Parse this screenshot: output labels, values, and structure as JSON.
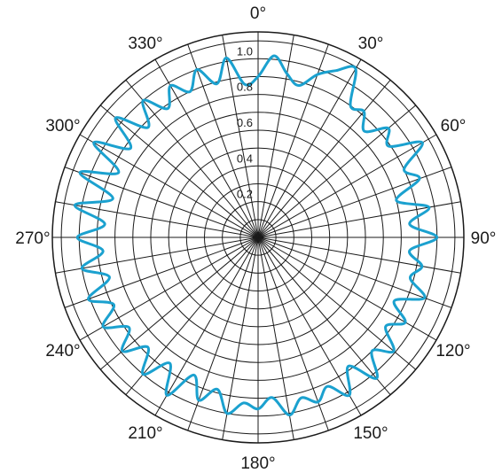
{
  "chart_data": {
    "type": "line",
    "subtype": "polar",
    "angle_direction": "clockwise",
    "zero_angle": "top",
    "angular_ticks": [
      0,
      30,
      60,
      90,
      120,
      150,
      180,
      210,
      240,
      270,
      300,
      330
    ],
    "angular_tick_labels": [
      "0°",
      "30°",
      "60°",
      "90°",
      "120°",
      "150°",
      "180°",
      "210°",
      "240°",
      "270°",
      "300°",
      "330°"
    ],
    "angular_grid_step_deg": 10,
    "radial_range": [
      0,
      1.15
    ],
    "radial_grid": [
      0.1,
      0.2,
      0.3,
      0.4,
      0.5,
      0.6,
      0.7,
      0.8,
      0.9,
      1.0,
      1.1
    ],
    "radial_tick_values": [
      0.2,
      0.4,
      0.6,
      0.8,
      1.0
    ],
    "radial_tick_labels": [
      "0.2",
      "0.4",
      "0.6",
      "0.8",
      "1.0"
    ],
    "grid": true,
    "series_color": "#1ba1cf",
    "series": [
      {
        "theta": [
          0,
          5,
          10,
          15,
          20,
          25,
          30,
          35,
          40,
          45,
          50,
          55,
          60,
          65,
          70,
          75,
          80,
          85,
          90,
          95,
          100,
          105,
          110,
          115,
          120,
          125,
          130,
          135,
          140,
          145,
          150,
          155,
          160,
          165,
          170,
          175,
          180,
          185,
          190,
          195,
          200,
          205,
          210,
          215,
          220,
          225,
          230,
          235,
          240,
          245,
          250,
          255,
          260,
          265,
          270,
          275,
          280,
          285,
          290,
          295,
          300,
          305,
          310,
          315,
          320,
          325,
          330,
          335,
          340,
          345,
          350,
          355
        ],
        "r": [
          0.9,
          1.02,
          0.93,
          0.88,
          0.97,
          1.03,
          1.09,
          0.9,
          0.92,
          0.84,
          0.95,
          0.89,
          1.06,
          0.9,
          0.96,
          0.8,
          0.97,
          0.85,
          1.0,
          0.85,
          0.93,
          0.88,
          0.99,
          0.84,
          0.95,
          0.87,
          0.99,
          0.9,
          1.03,
          0.88,
          1.02,
          0.92,
          0.98,
          0.93,
          1.01,
          0.9,
          0.96,
          0.93,
          1.0,
          0.88,
          0.97,
          0.85,
          1.02,
          0.86,
          1.0,
          0.87,
          0.99,
          0.88,
          1.0,
          0.89,
          1.01,
          0.86,
          1.0,
          0.87,
          1.01,
          0.86,
          1.04,
          0.84,
          1.06,
          0.86,
          1.06,
          0.87,
          1.04,
          0.87,
          1.0,
          0.88,
          0.98,
          0.9,
          1.0,
          0.89,
          1.02,
          0.86
        ]
      }
    ]
  }
}
